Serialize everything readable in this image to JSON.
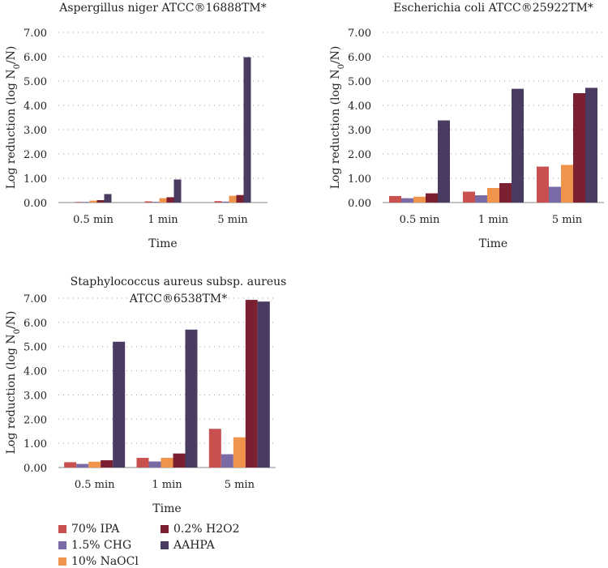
{
  "chart_data": [
    {
      "type": "bar",
      "title": "Aspergillus niger ATCC®16888TM*",
      "xlabel": "Time",
      "ylabel": "Log reduction (log N0/N)",
      "ylim": [
        0,
        7
      ],
      "yticks": [
        "0.00",
        "1.00",
        "2.00",
        "3.00",
        "4.00",
        "5.00",
        "6.00",
        "7.00"
      ],
      "categories": [
        "0.5 min",
        "1 min",
        "5 min"
      ],
      "series": [
        {
          "name": "70% IPA",
          "values": [
            0.02,
            0.05,
            0.06
          ]
        },
        {
          "name": "1.5% CHG",
          "values": [
            0.01,
            0.03,
            0.04
          ]
        },
        {
          "name": "10% NaOCl",
          "values": [
            0.08,
            0.18,
            0.28
          ]
        },
        {
          "name": "0.2% H2O2",
          "values": [
            0.1,
            0.22,
            0.31
          ]
        },
        {
          "name": "AAHPA",
          "values": [
            0.35,
            0.95,
            5.98
          ]
        }
      ]
    },
    {
      "type": "bar",
      "title": "Escherichia coli ATCC®25922TM*",
      "xlabel": "Time",
      "ylabel": "Log reduction (log N0/N)",
      "ylim": [
        0,
        7
      ],
      "yticks": [
        "0.00",
        "1.00",
        "2.00",
        "3.00",
        "4.00",
        "5.00",
        "6.00",
        "7.00"
      ],
      "categories": [
        "0.5 min",
        "1 min",
        "5 min"
      ],
      "series": [
        {
          "name": "70% IPA",
          "values": [
            0.27,
            0.45,
            1.48
          ]
        },
        {
          "name": "1.5% CHG",
          "values": [
            0.18,
            0.3,
            0.65
          ]
        },
        {
          "name": "10% NaOCl",
          "values": [
            0.24,
            0.6,
            1.55
          ]
        },
        {
          "name": "0.2% H2O2",
          "values": [
            0.38,
            0.8,
            4.5
          ]
        },
        {
          "name": "AAHPA",
          "values": [
            3.38,
            4.68,
            4.72
          ]
        }
      ]
    },
    {
      "type": "bar",
      "title": [
        "Staphylococcus aureus subsp. aureus",
        "ATCC®6538TM*"
      ],
      "xlabel": "Time",
      "ylabel": "Log reduction (log N0/N)",
      "ylim": [
        0,
        7
      ],
      "yticks": [
        "0.00",
        "1.00",
        "2.00",
        "3.00",
        "4.00",
        "5.00",
        "6.00",
        "7.00"
      ],
      "categories": [
        "0.5 min",
        "1 min",
        "5 min"
      ],
      "series": [
        {
          "name": "70% IPA",
          "values": [
            0.22,
            0.4,
            1.6
          ]
        },
        {
          "name": "1.5% CHG",
          "values": [
            0.15,
            0.25,
            0.55
          ]
        },
        {
          "name": "10% NaOCl",
          "values": [
            0.24,
            0.4,
            1.25
          ]
        },
        {
          "name": "0.2% H2O2",
          "values": [
            0.3,
            0.58,
            6.93
          ]
        },
        {
          "name": "AAHPA",
          "values": [
            5.2,
            5.7,
            6.86
          ]
        }
      ]
    }
  ],
  "colors": {
    "70% IPA": "#c8504f",
    "1.5% CHG": "#7a6aa6",
    "10% NaOCl": "#f0944c",
    "0.2% H2O2": "#7a2030",
    "AAHPA": "#4a3b62"
  },
  "legend": {
    "items": [
      "70% IPA",
      "0.2% H2O2",
      "1.5% CHG",
      "AAHPA",
      "10% NaOCl"
    ]
  }
}
